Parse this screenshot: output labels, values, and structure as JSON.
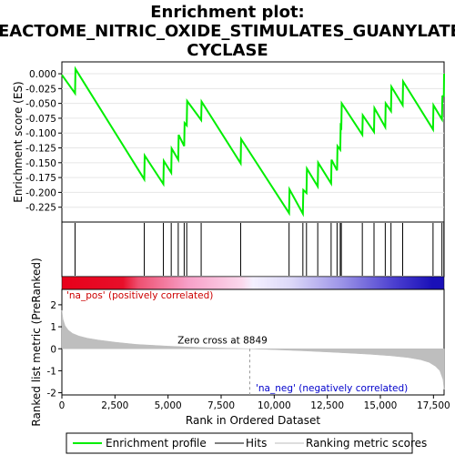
{
  "chart_data": {
    "type": "line",
    "title_lines": [
      "Enrichment plot:",
      "REACTOME_NITRIC_OXIDE_STIMULATES_GUANYLATE_",
      "CYCLASE"
    ],
    "es_panel": {
      "ylabel": "Enrichment score (ES)",
      "ylim": [
        -0.25,
        0.02
      ],
      "yticks": [
        0.0,
        -0.025,
        -0.05,
        -0.075,
        -0.1,
        -0.125,
        -0.15,
        -0.175,
        -0.2,
        -0.225
      ],
      "ytick_labels": [
        "0.000",
        "-0.025",
        "-0.050",
        "-0.075",
        "-0.100",
        "-0.125",
        "-0.150",
        "-0.175",
        "-0.200",
        "-0.225"
      ],
      "series": [
        {
          "name": "Enrichment profile",
          "color": "#00ee00",
          "x": [
            0,
            620,
            640,
            3880,
            3900,
            4780,
            4800,
            5150,
            5170,
            5480,
            5500,
            5760,
            5780,
            5880,
            5900,
            6560,
            6580,
            8420,
            8440,
            10700,
            10720,
            11350,
            11370,
            11520,
            11540,
            12050,
            12070,
            12680,
            12700,
            12960,
            12980,
            13110,
            13130,
            13160,
            13180,
            14150,
            14170,
            14700,
            14720,
            15230,
            15250,
            15500,
            15520,
            16050,
            16070,
            17480,
            17500,
            17900,
            17920,
            17990,
            18000
          ],
          "y": [
            -0.002,
            -0.033,
            0.008,
            -0.178,
            -0.138,
            -0.186,
            -0.147,
            -0.167,
            -0.126,
            -0.145,
            -0.103,
            -0.122,
            -0.083,
            -0.087,
            -0.046,
            -0.078,
            -0.047,
            -0.151,
            -0.11,
            -0.235,
            -0.195,
            -0.236,
            -0.196,
            -0.201,
            -0.16,
            -0.19,
            -0.15,
            -0.185,
            -0.145,
            -0.163,
            -0.122,
            -0.128,
            -0.088,
            -0.09,
            -0.05,
            -0.103,
            -0.07,
            -0.098,
            -0.058,
            -0.09,
            -0.05,
            -0.063,
            -0.022,
            -0.053,
            -0.013,
            -0.094,
            -0.053,
            -0.077,
            -0.038,
            -0.037,
            0.0
          ]
        }
      ]
    },
    "hits": {
      "name": "Hits",
      "x": [
        620,
        3880,
        4780,
        5150,
        5480,
        5760,
        5880,
        6560,
        8420,
        10700,
        11350,
        11520,
        12050,
        12680,
        12960,
        13110,
        13160,
        14150,
        14700,
        15230,
        15500,
        16050,
        17480,
        17900,
        17990
      ]
    },
    "rank_panel": {
      "ylabel": "Ranked list metric (PreRanked)",
      "xlabel": "Rank in Ordered Dataset",
      "ylim": [
        -2.1,
        2.7
      ],
      "yticks": [
        2,
        1,
        0,
        -1,
        -2
      ],
      "ytick_labels": [
        "2",
        "1",
        "0",
        "-1",
        "-2"
      ],
      "xlim": [
        0,
        18000
      ],
      "xticks": [
        0,
        2500,
        5000,
        7500,
        10000,
        12500,
        15000,
        17500
      ],
      "xtick_labels": [
        "0",
        "2,500",
        "5,000",
        "7,500",
        "10,000",
        "12,500",
        "15,000",
        "17,500"
      ],
      "curve": {
        "name": "Ranking metric scores",
        "color": "#bebebe",
        "x": [
          0,
          50,
          150,
          300,
          500,
          800,
          1200,
          1700,
          2500,
          3500,
          5000,
          6500,
          8000,
          8849,
          10000,
          11500,
          13000,
          14500,
          15500,
          16300,
          16900,
          17300,
          17600,
          17800,
          17950,
          18000
        ],
        "y": [
          1.75,
          1.35,
          1.05,
          0.85,
          0.7,
          0.58,
          0.48,
          0.4,
          0.3,
          0.2,
          0.12,
          0.06,
          0.02,
          0.0,
          -0.04,
          -0.1,
          -0.17,
          -0.25,
          -0.32,
          -0.4,
          -0.5,
          -0.62,
          -0.8,
          -1.0,
          -1.4,
          -1.85
        ]
      },
      "zero_cross_label": "Zero cross at 8849",
      "zero_cross_x": 8849,
      "pos_label": "'na_pos' (positively correlated)",
      "neg_label": "'na_neg' (negatively correlated)"
    },
    "legend": {
      "placement": "bottom",
      "items": [
        {
          "label": "Enrichment profile",
          "color": "#00ee00"
        },
        {
          "label": "Hits",
          "color": "#000000"
        },
        {
          "label": "Ranking metric scores",
          "color": "#bebebe"
        }
      ]
    }
  }
}
